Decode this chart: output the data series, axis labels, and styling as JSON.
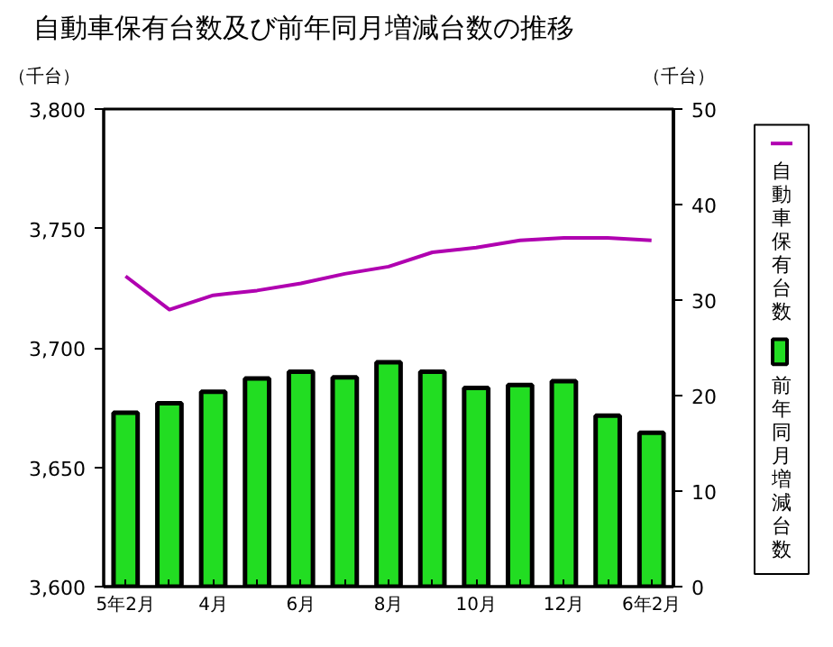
{
  "chart_data": {
    "type": "bar",
    "title": "自動車保有台数及び前年同月増減台数の推移",
    "ylabel": "（千台）",
    "y2label": "（千台）",
    "categories": [
      "5年2月",
      null,
      "4月",
      null,
      "6月",
      null,
      "8月",
      null,
      "10月",
      null,
      "12月",
      null,
      "6年2月"
    ],
    "series": [
      {
        "name": "自動車保有台数",
        "type": "line",
        "color": "#b000b0",
        "values": [
          3730,
          3716,
          3722,
          3724,
          3727,
          3731,
          3734,
          3740,
          3742,
          3745,
          3746,
          3746,
          3745
        ]
      },
      {
        "name": "前年同月増減台数",
        "axis": "y2",
        "color": "#22dd22",
        "values": [
          18.2,
          19.2,
          20.4,
          21.8,
          22.5,
          21.9,
          23.5,
          22.5,
          20.8,
          21.1,
          21.5,
          17.9,
          16.1
        ]
      }
    ],
    "ylim": [
      3600,
      3800
    ],
    "yticks": [
      {
        "value": 3600,
        "label": "3,600"
      },
      {
        "value": 3650,
        "label": "3,650"
      },
      {
        "value": 3700,
        "label": "3,700"
      },
      {
        "value": 3750,
        "label": "3,750"
      },
      {
        "value": 3800,
        "label": "3,800"
      }
    ],
    "y2lim": [
      0,
      50
    ],
    "y2ticks": [
      0,
      10,
      20,
      30,
      40,
      50
    ],
    "grid": false,
    "legend": "right"
  }
}
